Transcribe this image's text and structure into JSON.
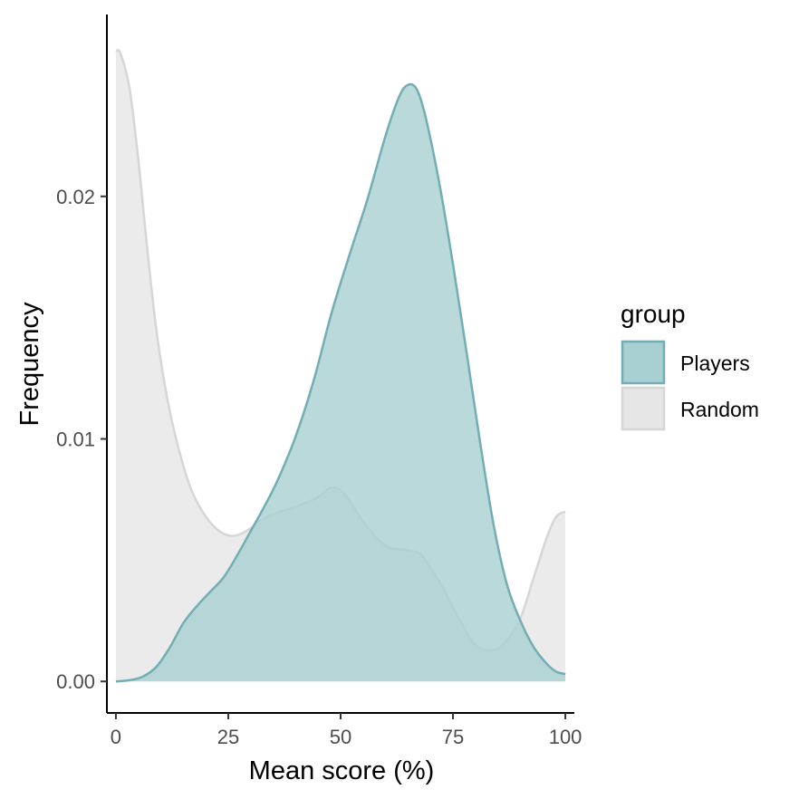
{
  "chart_data": {
    "type": "area",
    "subtype": "density",
    "xlabel": "Mean score (%)",
    "ylabel": "Frequency",
    "xlim": [
      -2,
      102
    ],
    "ylim": [
      -0.0013,
      0.0275
    ],
    "x_ticks": [
      0,
      25,
      50,
      75,
      100
    ],
    "x_tick_labels": [
      "0",
      "25",
      "50",
      "75",
      "100"
    ],
    "y_ticks": [
      0.0,
      0.01,
      0.02
    ],
    "y_tick_labels": [
      "0.00",
      "0.01",
      "0.02"
    ],
    "grid": false,
    "legend": {
      "title": "group",
      "placement": "right"
    },
    "series": [
      {
        "name": "Random",
        "fill": "#e6e6e6",
        "stroke": "#d6d6d6",
        "x": [
          0,
          1,
          3,
          5,
          7,
          9,
          11,
          13,
          15,
          17,
          20,
          23,
          26,
          29,
          32,
          35,
          40,
          45,
          48,
          51,
          55,
          60,
          65,
          68,
          72,
          76,
          80,
          84,
          87,
          90,
          93,
          96,
          98,
          100
        ],
        "y": [
          0.026,
          0.0259,
          0.0245,
          0.0215,
          0.0178,
          0.0145,
          0.0121,
          0.0103,
          0.0089,
          0.0078,
          0.0068,
          0.0062,
          0.006,
          0.0062,
          0.0066,
          0.0069,
          0.0072,
          0.0076,
          0.008,
          0.0077,
          0.0066,
          0.0056,
          0.0054,
          0.0052,
          0.0041,
          0.0027,
          0.0015,
          0.0013,
          0.0017,
          0.0026,
          0.0043,
          0.006,
          0.0068,
          0.007
        ]
      },
      {
        "name": "Players",
        "fill": "#a8cfd1",
        "stroke": "#72aeb3",
        "x": [
          0,
          3,
          6,
          9,
          12,
          15,
          18,
          21,
          24,
          27,
          30,
          33,
          36,
          40,
          44,
          48,
          52,
          56,
          60,
          63,
          65,
          67,
          69,
          72,
          75,
          78,
          81,
          84,
          87,
          90,
          93,
          96,
          98,
          100
        ],
        "y": [
          0.0,
          5e-05,
          0.0002,
          0.0006,
          0.0014,
          0.0024,
          0.0031,
          0.0037,
          0.0043,
          0.0052,
          0.0062,
          0.0072,
          0.0083,
          0.0101,
          0.0124,
          0.0152,
          0.0176,
          0.0199,
          0.0225,
          0.0241,
          0.0246,
          0.0244,
          0.0232,
          0.0205,
          0.0172,
          0.0136,
          0.0099,
          0.0065,
          0.004,
          0.0025,
          0.0014,
          0.0007,
          0.0004,
          0.0003
        ]
      }
    ]
  }
}
